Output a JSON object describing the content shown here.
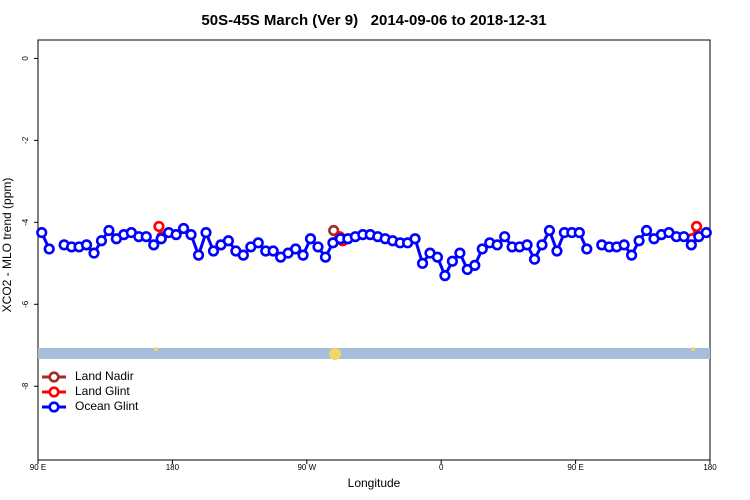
{
  "chart_data": {
    "type": "line",
    "title": "50S-45S March (Ver 9)   2014-09-06 to 2018-12-31",
    "x_label": "Longitude",
    "y_label": "XCO2 - MLO trend (ppm)",
    "xlim": [
      90,
      540
    ],
    "ylim": [
      -9.8,
      0.45
    ],
    "xticks": [
      {
        "value": 90,
        "label": "90 E"
      },
      180,
      {
        "value": 270,
        "label": "90 W"
      },
      {
        "value": 360,
        "label": "0"
      },
      {
        "value": 450,
        "label": "90 E"
      },
      {
        "value": 540,
        "label": "180"
      }
    ],
    "yticks": [
      0,
      -2,
      -4,
      -6,
      -8
    ],
    "legend": "bottom-left",
    "series": [
      {
        "name": "Land Nadir",
        "color": "#a52a2a",
        "x": [
          288
        ],
        "values": [
          -4.2
        ]
      },
      {
        "name": "Land Glint",
        "color": "#ff0000",
        "x": [
          171,
          173,
          232,
          292,
          294,
          410,
          528,
          531
        ],
        "values": [
          -4.1,
          -4.35,
          null,
          -4.35,
          -4.45,
          null,
          -4.4,
          -4.1
        ]
      },
      {
        "name": "Ocean Glint",
        "color": "#0000ff",
        "x": [
          92.5,
          97.5,
          102.5,
          107.5,
          112.5,
          117.5,
          122.5,
          127.5,
          132.5,
          137.5,
          142.5,
          147.5,
          152.5,
          157.5,
          162.5,
          167.5,
          172.5,
          177.5,
          182.5,
          187.5,
          192.5,
          197.5,
          202.5,
          207.5,
          212.5,
          217.5,
          222.5,
          227.5,
          232.5,
          237.5,
          242.5,
          247.5,
          252.5,
          257.5,
          262.5,
          267.5,
          272.5,
          277.5,
          282.5,
          287.5,
          292.5,
          297.5,
          302.5,
          307.5,
          312.5,
          317.5,
          322.5,
          327.5,
          332.5,
          337.5,
          342.5,
          347.5,
          352.5,
          357.5,
          362.5,
          367.5,
          372.5,
          377.5,
          382.5,
          387.5,
          392.5,
          397.5,
          402.5,
          407.5,
          412.5,
          417.5,
          422.5,
          427.5,
          432.5,
          437.5,
          442.5,
          447.5,
          452.5,
          457.5,
          462.5,
          467.5,
          472.5,
          477.5,
          482.5,
          487.5,
          492.5,
          497.5,
          502.5,
          507.5,
          512.5,
          517.5,
          522.5,
          527.5,
          532.5,
          537.5
        ],
        "values": [
          -4.25,
          -4.65,
          null,
          -4.55,
          -4.6,
          -4.6,
          -4.55,
          -4.75,
          -4.45,
          -4.2,
          -4.4,
          -4.3,
          -4.25,
          -4.35,
          -4.35,
          -4.55,
          -4.4,
          -4.25,
          -4.3,
          -4.15,
          -4.3,
          -4.8,
          -4.25,
          -4.7,
          -4.55,
          -4.45,
          -4.7,
          -4.8,
          -4.6,
          -4.5,
          -4.7,
          -4.7,
          -4.85,
          -4.75,
          -4.65,
          -4.8,
          -4.4,
          -4.6,
          -4.85,
          -4.5,
          -4.4,
          -4.4,
          -4.35,
          -4.3,
          -4.3,
          -4.35,
          -4.4,
          -4.45,
          -4.5,
          -4.5,
          -4.4,
          -5.0,
          -4.75,
          -4.85,
          -5.3,
          -4.95,
          -4.75,
          -5.15,
          -5.05,
          -4.65,
          -4.5,
          -4.55,
          -4.35,
          -4.6,
          -4.6,
          -4.55,
          -4.9,
          -4.55,
          -4.2,
          -4.7,
          -4.25,
          -4.25,
          -4.25,
          -4.65,
          null,
          -4.55,
          -4.6,
          -4.6,
          -4.55,
          -4.8,
          -4.45,
          -4.2,
          -4.4,
          -4.3,
          -4.25,
          -4.35,
          -4.35,
          -4.55,
          -4.35,
          -4.25
        ]
      }
    ]
  }
}
